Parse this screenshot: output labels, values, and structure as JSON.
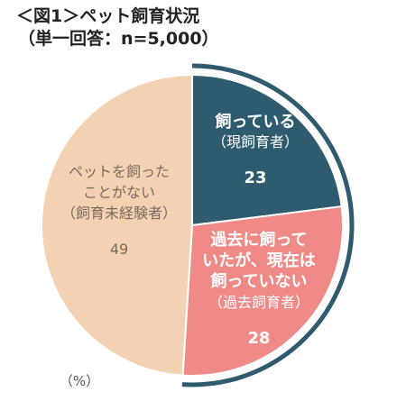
{
  "title": {
    "line1": "＜図1＞ペット飼育状況",
    "line2": "（単一回答：n=5,000）"
  },
  "unit_note": "（%）",
  "chart_data": {
    "type": "pie",
    "title": "＜図1＞ペット飼育状況（単一回答：n=5,000）",
    "slices": [
      {
        "id": "current",
        "value": 23,
        "color": "#2e5b6e",
        "label_lines": [
          "飼っている",
          "（現飼育者）"
        ],
        "value_label": "23",
        "text_color": "#ffffff"
      },
      {
        "id": "past",
        "value": 28,
        "color": "#ef8a88",
        "label_lines": [
          "過去に飼って",
          "いたが、現在は",
          "飼っていない",
          "（過去飼育者）"
        ],
        "value_label": "28",
        "text_color": "#ffffff"
      },
      {
        "id": "never",
        "value": 49,
        "color": "#f3d2b3",
        "label_lines": [
          "ペットを飼った",
          "ことがない",
          "（飼育未経験者）"
        ],
        "value_label": "49",
        "text_color": "#7a6a5e"
      }
    ],
    "highlight_arc_color": "#2e5b6e",
    "highlight_slices": [
      "current",
      "past"
    ]
  }
}
